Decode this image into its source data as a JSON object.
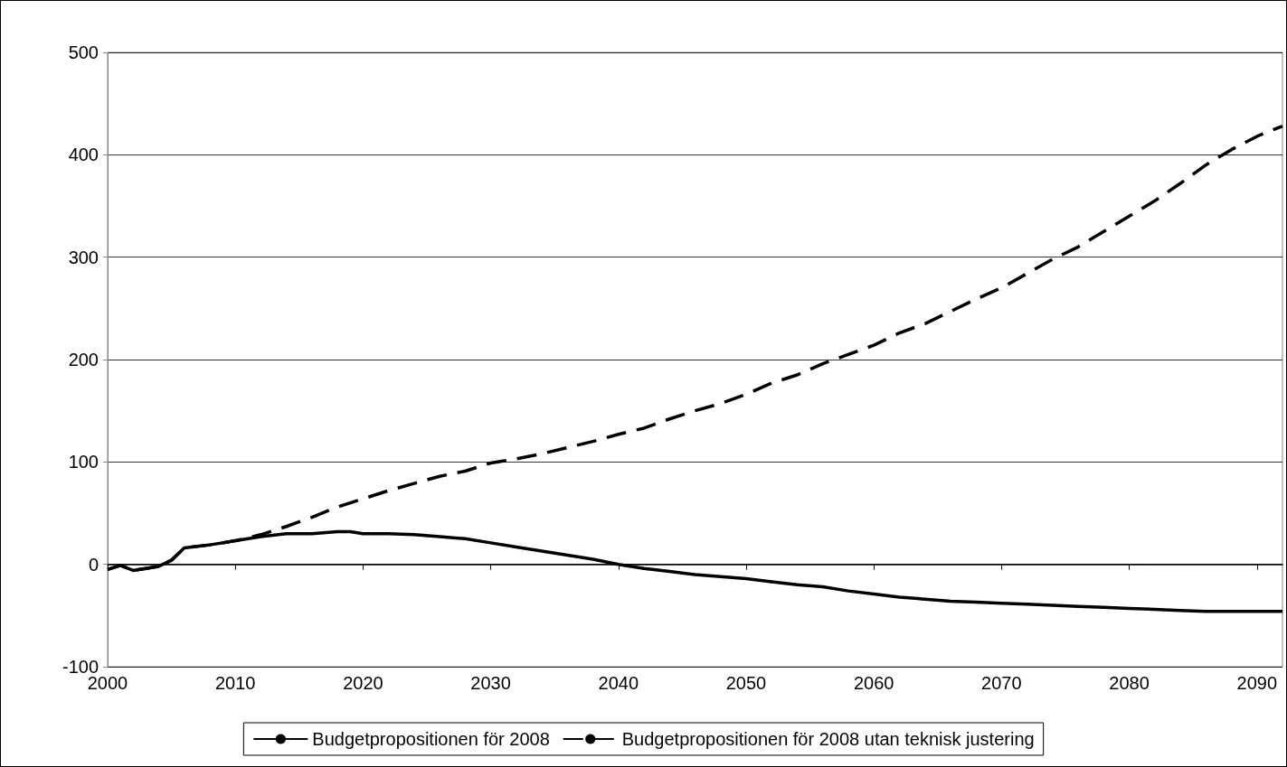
{
  "chart_data": {
    "type": "line",
    "x": [
      2000,
      2001,
      2002,
      2003,
      2004,
      2005,
      2006,
      2008,
      2010,
      2012,
      2014,
      2016,
      2018,
      2019,
      2020,
      2022,
      2024,
      2026,
      2028,
      2030,
      2032,
      2034,
      2036,
      2038,
      2040,
      2042,
      2044,
      2046,
      2048,
      2050,
      2052,
      2054,
      2056,
      2058,
      2060,
      2062,
      2064,
      2066,
      2068,
      2070,
      2072,
      2074,
      2076,
      2078,
      2080,
      2082,
      2084,
      2086,
      2088,
      2090,
      2092
    ],
    "series": [
      {
        "name": "Budgetpropositionen för 2008",
        "color": "#000000",
        "line_style": "solid",
        "values": [
          -5,
          -1,
          -6,
          -4,
          -2,
          4,
          16,
          19,
          23,
          27,
          30,
          30,
          32,
          32,
          30,
          30,
          29,
          27,
          25,
          21,
          17,
          13,
          9,
          5,
          0,
          -4,
          -7,
          -10,
          -12,
          -14,
          -17,
          -20,
          -22,
          -26,
          -29,
          -32,
          -34,
          -36,
          -37,
          -38,
          -39,
          -40,
          -41,
          -42,
          -43,
          -44,
          -45,
          -46,
          -46,
          -46,
          -46
        ]
      },
      {
        "name": "Budgetpropositionen för 2008 utan teknisk justering",
        "color": "#000000",
        "line_style": "dashed",
        "values": [
          -5,
          -1,
          -6,
          -4,
          -2,
          4,
          16,
          19,
          23,
          29,
          37,
          46,
          56,
          60,
          64,
          72,
          79,
          86,
          91,
          99,
          103,
          108,
          114,
          120,
          127,
          133,
          142,
          150,
          157,
          166,
          177,
          185,
          196,
          205,
          214,
          226,
          235,
          247,
          259,
          270,
          284,
          298,
          310,
          325,
          340,
          355,
          372,
          390,
          405,
          418,
          428
        ]
      }
    ],
    "xlim": [
      2000,
      2092
    ],
    "xticks": [
      2000,
      2010,
      2020,
      2030,
      2040,
      2050,
      2060,
      2070,
      2080,
      2090
    ],
    "ylim": [
      -100,
      500
    ],
    "yticks": [
      -100,
      0,
      100,
      200,
      300,
      400,
      500
    ],
    "grid": "y",
    "legend": "bottom",
    "marker": "none"
  }
}
